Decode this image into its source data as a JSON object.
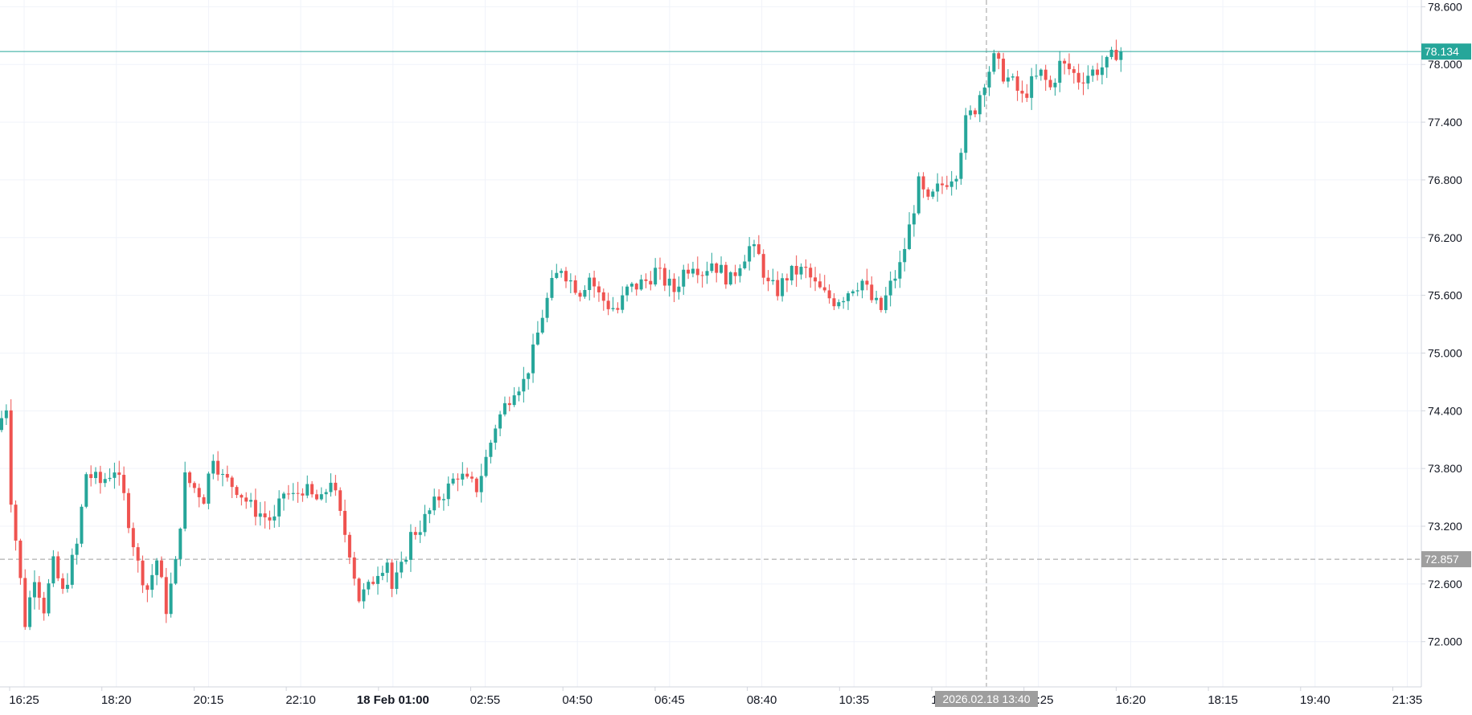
{
  "chart_data": {
    "type": "candlestick",
    "y_axis": {
      "side": "right",
      "ticks": [
        "78.600",
        "78.000",
        "77.400",
        "76.800",
        "76.200",
        "75.600",
        "75.000",
        "74.400",
        "73.800",
        "73.200",
        "72.600",
        "72.000"
      ],
      "tick_values": [
        78.6,
        78.0,
        77.4,
        76.8,
        76.2,
        75.6,
        75.0,
        74.4,
        73.8,
        73.2,
        72.6,
        72.0
      ],
      "ylim": [
        71.53,
        78.67
      ]
    },
    "x_axis": {
      "ticks": [
        {
          "label": "16:25",
          "bold": false
        },
        {
          "label": "18:20",
          "bold": false
        },
        {
          "label": "20:15",
          "bold": false
        },
        {
          "label": "22:10",
          "bold": false
        },
        {
          "label": "18 Feb 01:00",
          "bold": true
        },
        {
          "label": "02:55",
          "bold": false
        },
        {
          "label": "04:50",
          "bold": false
        },
        {
          "label": "06:45",
          "bold": false
        },
        {
          "label": "08:40",
          "bold": false
        },
        {
          "label": "10:35",
          "bold": false
        },
        {
          "label": "12:30",
          "bold": false
        },
        {
          "label": "14:25",
          "bold": false
        },
        {
          "label": "16:20",
          "bold": false
        },
        {
          "label": "18:15",
          "bold": false
        },
        {
          "label": "19:40",
          "bold": false
        },
        {
          "label": "21:35",
          "bold": false
        }
      ]
    },
    "last_price": {
      "label": "78.134",
      "value": 78.134
    },
    "crosshair": {
      "price_label": "72.857",
      "price": 72.857,
      "time_label": "2026.02.18 13:40"
    },
    "colors": {
      "up": "#26a69a",
      "down": "#ef5350",
      "price_line": "#26a69a",
      "crosshair": "#9e9e9e",
      "grid": "#f0f3fa",
      "axis_text": "#131722"
    },
    "path_points": [
      [
        0,
        74.2
      ],
      [
        2,
        74.45
      ],
      [
        3,
        73.5
      ],
      [
        6,
        72.2
      ],
      [
        8,
        72.7
      ],
      [
        10,
        72.35
      ],
      [
        12,
        72.8
      ],
      [
        14,
        72.5
      ],
      [
        17,
        73.0
      ],
      [
        19,
        73.75
      ],
      [
        22,
        73.65
      ],
      [
        25,
        73.8
      ],
      [
        27,
        73.5
      ],
      [
        30,
        72.8
      ],
      [
        32,
        72.55
      ],
      [
        34,
        72.85
      ],
      [
        36,
        72.35
      ],
      [
        38,
        72.8
      ],
      [
        40,
        73.7
      ],
      [
        42,
        73.6
      ],
      [
        44,
        73.5
      ],
      [
        46,
        73.95
      ],
      [
        48,
        73.7
      ],
      [
        51,
        73.6
      ],
      [
        54,
        73.4
      ],
      [
        57,
        73.3
      ],
      [
        59,
        73.25
      ],
      [
        61,
        73.55
      ],
      [
        63,
        73.5
      ],
      [
        65,
        73.6
      ],
      [
        67,
        73.5
      ],
      [
        69,
        73.45
      ],
      [
        71,
        73.7
      ],
      [
        73,
        73.3
      ],
      [
        75,
        72.95
      ],
      [
        77,
        72.45
      ],
      [
        79,
        72.55
      ],
      [
        81,
        72.75
      ],
      [
        83,
        72.85
      ],
      [
        84,
        72.55
      ],
      [
        86,
        72.75
      ],
      [
        88,
        73.1
      ],
      [
        90,
        73.2
      ],
      [
        92,
        73.35
      ],
      [
        94,
        73.5
      ],
      [
        96,
        73.6
      ],
      [
        98,
        73.75
      ],
      [
        100,
        73.65
      ],
      [
        102,
        73.6
      ],
      [
        104,
        73.9
      ],
      [
        106,
        74.25
      ],
      [
        108,
        74.45
      ],
      [
        110,
        74.65
      ],
      [
        112,
        74.7
      ],
      [
        114,
        75.0
      ],
      [
        116,
        75.4
      ],
      [
        118,
        75.7
      ],
      [
        120,
        75.9
      ],
      [
        122,
        75.75
      ],
      [
        124,
        75.65
      ],
      [
        126,
        75.8
      ],
      [
        128,
        75.6
      ],
      [
        130,
        75.5
      ],
      [
        132,
        75.45
      ],
      [
        134,
        75.65
      ],
      [
        136,
        75.7
      ],
      [
        138,
        75.75
      ],
      [
        140,
        75.85
      ],
      [
        142,
        75.75
      ],
      [
        144,
        75.65
      ],
      [
        146,
        75.85
      ],
      [
        148,
        75.95
      ],
      [
        150,
        75.85
      ],
      [
        152,
        75.95
      ],
      [
        154,
        75.85
      ],
      [
        156,
        75.75
      ],
      [
        158,
        75.95
      ],
      [
        160,
        76.1
      ],
      [
        162,
        76.0
      ],
      [
        164,
        75.7
      ],
      [
        166,
        75.65
      ],
      [
        168,
        75.8
      ],
      [
        170,
        75.85
      ],
      [
        172,
        75.85
      ],
      [
        174,
        75.7
      ],
      [
        176,
        75.6
      ],
      [
        178,
        75.55
      ],
      [
        180,
        75.6
      ],
      [
        182,
        75.7
      ],
      [
        184,
        75.75
      ],
      [
        186,
        75.55
      ],
      [
        188,
        75.45
      ],
      [
        190,
        75.7
      ],
      [
        192,
        75.9
      ],
      [
        194,
        76.3
      ],
      [
        196,
        76.75
      ],
      [
        198,
        76.55
      ],
      [
        200,
        76.7
      ],
      [
        202,
        76.8
      ],
      [
        204,
        76.9
      ],
      [
        206,
        77.4
      ],
      [
        208,
        77.55
      ],
      [
        210,
        77.85
      ],
      [
        212,
        78.05
      ],
      [
        214,
        77.9
      ],
      [
        216,
        77.8
      ],
      [
        218,
        77.65
      ],
      [
        220,
        77.8
      ],
      [
        222,
        77.9
      ],
      [
        224,
        77.75
      ],
      [
        226,
        78.0
      ],
      [
        228,
        77.95
      ],
      [
        230,
        77.85
      ],
      [
        232,
        77.9
      ],
      [
        234,
        77.95
      ],
      [
        236,
        78.0
      ],
      [
        238,
        78.134
      ]
    ]
  }
}
